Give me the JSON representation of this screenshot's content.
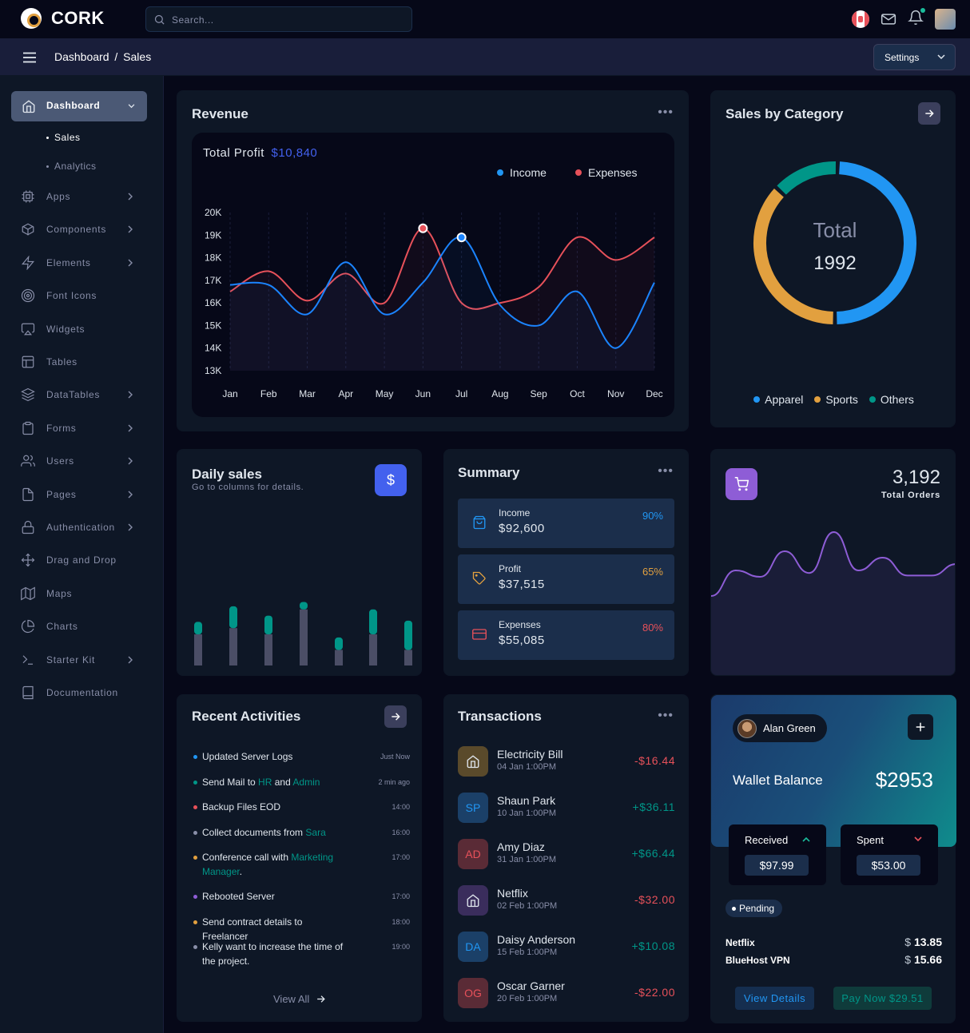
{
  "app": {
    "logo_text": "CORK"
  },
  "search": {
    "placeholder": "Search..."
  },
  "breadcrumb": {
    "parent": "Dashboard",
    "separator": "/",
    "current": "Sales"
  },
  "settings_label": "Settings",
  "sidebar": {
    "dashboard": "Dashboard",
    "subitems": [
      "Sales",
      "Analytics"
    ],
    "items": [
      {
        "label": "Apps",
        "icon": "cpu-icon",
        "chevron": true
      },
      {
        "label": "Components",
        "icon": "box-icon",
        "chevron": true
      },
      {
        "label": "Elements",
        "icon": "zap-icon",
        "chevron": true
      },
      {
        "label": "Font Icons",
        "icon": "target-icon",
        "chevron": false
      },
      {
        "label": "Widgets",
        "icon": "airplay-icon",
        "chevron": false
      },
      {
        "label": "Tables",
        "icon": "layout-icon",
        "chevron": false
      },
      {
        "label": "DataTables",
        "icon": "layers-icon",
        "chevron": true
      },
      {
        "label": "Forms",
        "icon": "clipboard-icon",
        "chevron": true
      },
      {
        "label": "Users",
        "icon": "users-icon",
        "chevron": true
      },
      {
        "label": "Pages",
        "icon": "file-icon",
        "chevron": true
      },
      {
        "label": "Authentication",
        "icon": "lock-icon",
        "chevron": true
      },
      {
        "label": "Drag and Drop",
        "icon": "move-icon",
        "chevron": false
      },
      {
        "label": "Maps",
        "icon": "map-icon",
        "chevron": false
      },
      {
        "label": "Charts",
        "icon": "pie-chart-icon",
        "chevron": false
      },
      {
        "label": "Starter Kit",
        "icon": "terminal-icon",
        "chevron": true
      },
      {
        "label": "Documentation",
        "icon": "book-icon",
        "chevron": false
      }
    ]
  },
  "revenue": {
    "title": "Revenue",
    "total_profit_label": "Total Profit",
    "total_profit_value": "$10,840",
    "colors": {
      "income": "#1b84ff",
      "expenses": "#e7515a"
    }
  },
  "chart_data": [
    {
      "type": "line",
      "x": [
        "Jan",
        "Feb",
        "Mar",
        "Apr",
        "May",
        "Jun",
        "Jul",
        "Aug",
        "Sep",
        "Oct",
        "Nov",
        "Dec"
      ],
      "yticks": [
        "20K",
        "19K",
        "18K",
        "17K",
        "16K",
        "15K",
        "14K",
        "13K"
      ],
      "ylim": [
        13000,
        20000
      ],
      "series": [
        {
          "name": "Income",
          "values": [
            16800,
            16800,
            15500,
            17800,
            15500,
            16900,
            18900,
            15900,
            15000,
            16500,
            14000,
            16900
          ]
        },
        {
          "name": "Expenses",
          "values": [
            16500,
            17400,
            16100,
            17300,
            16000,
            19300,
            16000,
            16000,
            16700,
            18900,
            17900,
            18900
          ]
        }
      ]
    },
    {
      "type": "pie",
      "center_label": "Total",
      "center_value": "1992",
      "categories": [
        "Apparel",
        "Sports",
        "Others"
      ],
      "values": [
        985,
        737,
        270
      ],
      "colors": [
        "#2196f3",
        "#e2a03f",
        "#009688"
      ]
    },
    {
      "type": "bar",
      "title": "Daily sales",
      "series": [
        {
          "values": [
            50,
            60,
            50,
            90,
            25,
            50,
            25
          ]
        },
        {
          "values": [
            20,
            35,
            30,
            12,
            20,
            40,
            47
          ]
        }
      ],
      "colors": [
        "#4b4e66",
        "#009688"
      ]
    },
    {
      "type": "area",
      "values": [
        20,
        40,
        35,
        55,
        38,
        70,
        40,
        50,
        36,
        36,
        45
      ],
      "color": "#8e5dd6"
    }
  ],
  "sales_category": {
    "title": "Sales by Category"
  },
  "daily_sales": {
    "title": "Daily sales",
    "subtitle": "Go to columns for details.",
    "icon": "$"
  },
  "summary": {
    "title": "Summary",
    "rows": [
      {
        "label": "Income",
        "value": "$92,600",
        "pct": "90%",
        "color": "#2196f3",
        "icon": "shopping-bag-icon"
      },
      {
        "label": "Profit",
        "value": "$37,515",
        "pct": "65%",
        "color": "#e2a03f",
        "icon": "tag-icon"
      },
      {
        "label": "Expenses",
        "value": "$55,085",
        "pct": "80%",
        "color": "#e7515a",
        "icon": "credit-card-icon"
      }
    ]
  },
  "orders": {
    "value": "3,192",
    "label": "Total Orders"
  },
  "activities": {
    "title": "Recent Activities",
    "view_all": "View All",
    "rows": [
      {
        "text": "Updated Server Logs",
        "time": "Just Now",
        "color": "#2196f3"
      },
      {
        "parts": [
          "Send Mail to ",
          "HR",
          " and ",
          "Admin"
        ],
        "time": "2 min ago",
        "color": "#009688"
      },
      {
        "text": "Backup Files EOD",
        "time": "14:00",
        "color": "#e7515a"
      },
      {
        "parts": [
          "Collect documents from ",
          "Sara"
        ],
        "time": "16:00",
        "color": "#888ea8"
      },
      {
        "parts": [
          "Conference call with ",
          "Marketing Manager",
          "."
        ],
        "time": "17:00",
        "color": "#e2a03f"
      },
      {
        "text": "Rebooted Server",
        "time": "17:00",
        "color": "#8e5dd6"
      },
      {
        "text": "Send contract details to Freelancer",
        "time": "18:00",
        "color": "#e2a03f"
      },
      {
        "text": "Kelly want to increase the time of the project.",
        "time": "19:00",
        "color": "#888ea8"
      }
    ]
  },
  "transactions": {
    "title": "Transactions",
    "rows": [
      {
        "name": "Electricity Bill",
        "date": "04 Jan 1:00PM",
        "amount": "-$16.44",
        "initials": "",
        "bg": "#5a4a2b",
        "fg": "#e2a03f"
      },
      {
        "name": "Shaun Park",
        "date": "10 Jan 1:00PM",
        "amount": "+$36.11",
        "initials": "SP",
        "bg": "#1b4068",
        "fg": "#2196f3"
      },
      {
        "name": "Amy Diaz",
        "date": "31 Jan 1:00PM",
        "amount": "+$66.44",
        "initials": "AD",
        "bg": "#5a2b36",
        "fg": "#e7515a"
      },
      {
        "name": "Netflix",
        "date": "02 Feb 1:00PM",
        "amount": "-$32.00",
        "initials": "",
        "bg": "#3a2d5c",
        "fg": "#8e5dd6"
      },
      {
        "name": "Daisy Anderson",
        "date": "15 Feb 1:00PM",
        "amount": "+$10.08",
        "initials": "DA",
        "bg": "#1b4068",
        "fg": "#2196f3"
      },
      {
        "name": "Oscar Garner",
        "date": "20 Feb 1:00PM",
        "amount": "-$22.00",
        "initials": "OG",
        "bg": "#5a2b36",
        "fg": "#e7515a"
      }
    ]
  },
  "wallet": {
    "user": "Alan Green",
    "label": "Wallet Balance",
    "balance": "$2953",
    "received_label": "Received",
    "received_value": "$97.99",
    "spent_label": "Spent",
    "spent_value": "$53.00",
    "pending": "Pending",
    "items": [
      {
        "name": "Netflix",
        "currency": "$",
        "value": "13.85"
      },
      {
        "name": "BlueHost VPN",
        "currency": "$",
        "value": "15.66"
      }
    ],
    "view_details": "View Details",
    "pay_now": "Pay Now $29.51"
  }
}
